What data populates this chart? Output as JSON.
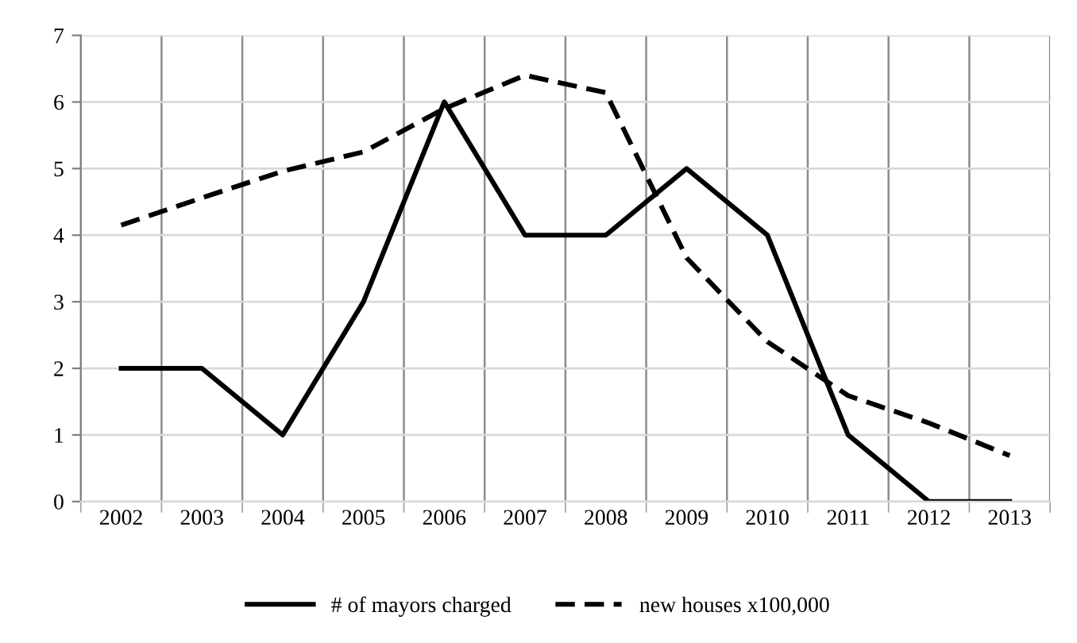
{
  "chart_data": {
    "type": "line",
    "categories": [
      "2002",
      "2003",
      "2004",
      "2005",
      "2006",
      "2007",
      "2008",
      "2009",
      "2010",
      "2011",
      "2012",
      "2013"
    ],
    "series": [
      {
        "name": "# of mayors charged",
        "color": "#000000",
        "line_style": "solid",
        "values": [
          2,
          2,
          1,
          3,
          6,
          4,
          4,
          5,
          4,
          1,
          0,
          0
        ]
      },
      {
        "name": "new houses x100,000",
        "color": "#000000",
        "line_style": "dashed",
        "values": [
          4.15,
          4.56,
          4.96,
          5.25,
          5.9,
          6.4,
          6.14,
          3.66,
          2.4,
          1.59,
          1.18,
          0.69
        ]
      }
    ],
    "ylim": [
      0,
      7
    ],
    "yticks": [
      0,
      1,
      2,
      3,
      4,
      5,
      6,
      7
    ],
    "grid": true,
    "legend": "bottom",
    "marker": "none"
  }
}
